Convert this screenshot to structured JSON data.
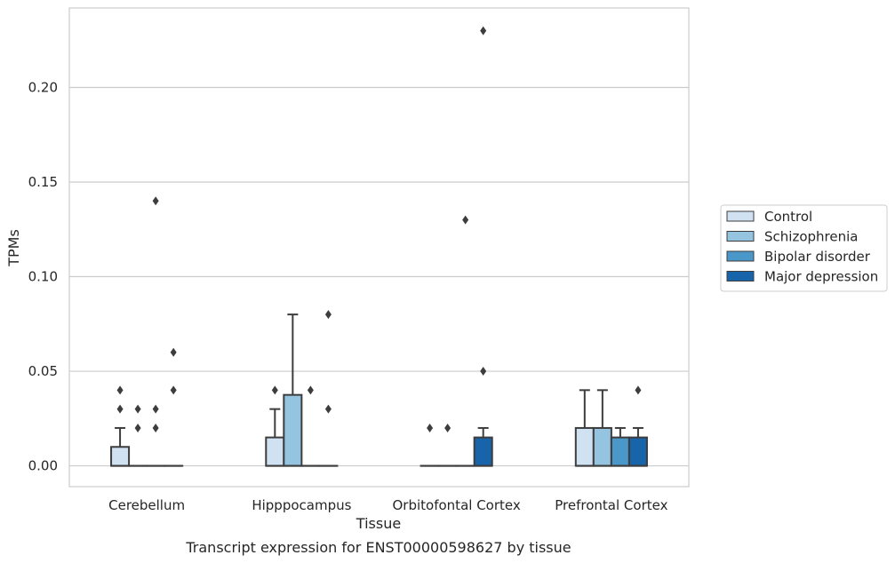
{
  "caption": "Transcript expression for ENST00000598627 by tissue",
  "chart_data": {
    "type": "boxplot",
    "xlabel": "Tissue",
    "ylabel": "TPMs",
    "ylim": [
      -0.011,
      0.242
    ],
    "yticks": [
      0.0,
      0.05,
      0.1,
      0.15,
      0.2
    ],
    "ytick_labels": [
      "0.00",
      "0.05",
      "0.10",
      "0.15",
      "0.20"
    ],
    "grid": "horizontal",
    "legend_position": "right",
    "categories": [
      "Cerebellum",
      "Hipppocampus",
      "Orbitofontal Cortex",
      "Prefrontal Cortex"
    ],
    "series": [
      {
        "name": "Control",
        "color": "#d0e1f2",
        "boxes": [
          {
            "q1": 0.0,
            "median": 0.0,
            "q3": 0.01,
            "whisker_low": 0.0,
            "whisker_high": 0.02,
            "outliers": [
              0.03,
              0.04
            ]
          },
          {
            "q1": 0.0,
            "median": 0.0,
            "q3": 0.015,
            "whisker_low": 0.0,
            "whisker_high": 0.03,
            "outliers": [
              0.04
            ]
          },
          {
            "q1": 0.0,
            "median": 0.0,
            "q3": 0.0,
            "whisker_low": 0.0,
            "whisker_high": 0.0,
            "outliers": [
              0.02
            ]
          },
          {
            "q1": 0.0,
            "median": 0.0,
            "q3": 0.02,
            "whisker_low": 0.0,
            "whisker_high": 0.04,
            "outliers": []
          }
        ]
      },
      {
        "name": "Schizophrenia",
        "color": "#94c4df",
        "boxes": [
          {
            "q1": 0.0,
            "median": 0.0,
            "q3": 0.0,
            "whisker_low": 0.0,
            "whisker_high": 0.0,
            "outliers": [
              0.02,
              0.03
            ]
          },
          {
            "q1": 0.0,
            "median": 0.0,
            "q3": 0.0375,
            "whisker_low": 0.0,
            "whisker_high": 0.08,
            "outliers": []
          },
          {
            "q1": 0.0,
            "median": 0.0,
            "q3": 0.0,
            "whisker_low": 0.0,
            "whisker_high": 0.0,
            "outliers": [
              0.02
            ]
          },
          {
            "q1": 0.0,
            "median": 0.0,
            "q3": 0.02,
            "whisker_low": 0.0,
            "whisker_high": 0.04,
            "outliers": []
          }
        ]
      },
      {
        "name": "Bipolar disorder",
        "color": "#4a98c9",
        "boxes": [
          {
            "q1": 0.0,
            "median": 0.0,
            "q3": 0.0,
            "whisker_low": 0.0,
            "whisker_high": 0.0,
            "outliers": [
              0.02,
              0.03,
              0.14
            ]
          },
          {
            "q1": 0.0,
            "median": 0.0,
            "q3": 0.0,
            "whisker_low": 0.0,
            "whisker_high": 0.0,
            "outliers": [
              0.04
            ]
          },
          {
            "q1": 0.0,
            "median": 0.0,
            "q3": 0.0,
            "whisker_low": 0.0,
            "whisker_high": 0.0,
            "outliers": [
              0.13
            ]
          },
          {
            "q1": 0.0,
            "median": 0.0,
            "q3": 0.015,
            "whisker_low": 0.0,
            "whisker_high": 0.02,
            "outliers": []
          }
        ]
      },
      {
        "name": "Major depression",
        "color": "#1764ab",
        "boxes": [
          {
            "q1": 0.0,
            "median": 0.0,
            "q3": 0.0,
            "whisker_low": 0.0,
            "whisker_high": 0.0,
            "outliers": [
              0.04,
              0.06
            ]
          },
          {
            "q1": 0.0,
            "median": 0.0,
            "q3": 0.0,
            "whisker_low": 0.0,
            "whisker_high": 0.0,
            "outliers": [
              0.03,
              0.08
            ]
          },
          {
            "q1": 0.0,
            "median": 0.0,
            "q3": 0.015,
            "whisker_low": 0.0,
            "whisker_high": 0.02,
            "outliers": [
              0.05,
              0.23
            ]
          },
          {
            "q1": 0.0,
            "median": 0.0,
            "q3": 0.015,
            "whisker_low": 0.0,
            "whisker_high": 0.02,
            "outliers": [
              0.04
            ]
          }
        ]
      }
    ]
  }
}
